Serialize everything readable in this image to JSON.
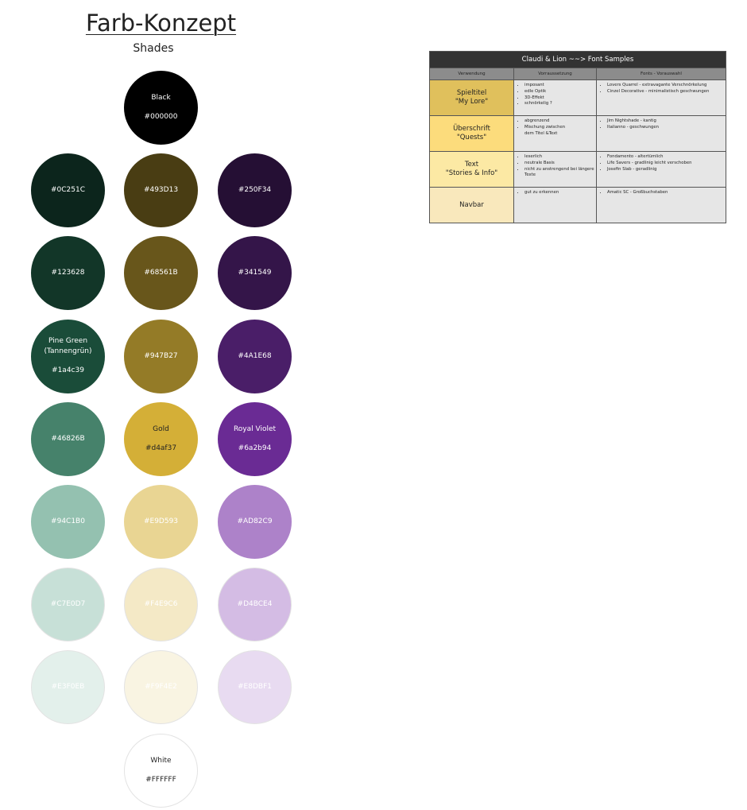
{
  "title": "Farb-Konzept",
  "subtitle": "Shades",
  "swatches": [
    {
      "id": "black",
      "name": "Black",
      "label": "#000000",
      "color": "#000000",
      "text": "#ffffff",
      "col": 1,
      "row": 0
    },
    {
      "id": "0c251c",
      "name": "",
      "label": "#0C251C",
      "color": "#0C251C",
      "text": "#ffffff",
      "col": 0,
      "row": 1
    },
    {
      "id": "493d13",
      "name": "",
      "label": "#493D13",
      "color": "#493D13",
      "text": "#ffffff",
      "col": 1,
      "row": 1
    },
    {
      "id": "250f34",
      "name": "",
      "label": "#250F34",
      "color": "#250F34",
      "text": "#ffffff",
      "col": 2,
      "row": 1
    },
    {
      "id": "123628",
      "name": "",
      "label": "#123628",
      "color": "#123628",
      "text": "#ffffff",
      "col": 0,
      "row": 2
    },
    {
      "id": "68561b",
      "name": "",
      "label": "#68561B",
      "color": "#68561B",
      "text": "#ffffff",
      "col": 1,
      "row": 2
    },
    {
      "id": "341549",
      "name": "",
      "label": "#341549",
      "color": "#341549",
      "text": "#ffffff",
      "col": 2,
      "row": 2
    },
    {
      "id": "1a4c39",
      "name": "Pine Green\n(Tannengrün)",
      "label": "#1a4c39",
      "color": "#1a4c39",
      "text": "#ffffff",
      "col": 0,
      "row": 3
    },
    {
      "id": "947b27",
      "name": "",
      "label": "#947B27",
      "color": "#947B27",
      "text": "#ffffff",
      "col": 1,
      "row": 3
    },
    {
      "id": "4a1e68",
      "name": "",
      "label": "#4A1E68",
      "color": "#4A1E68",
      "text": "#ffffff",
      "col": 2,
      "row": 3
    },
    {
      "id": "46826b",
      "name": "",
      "label": "#46826B",
      "color": "#46826B",
      "text": "#ffffff",
      "col": 0,
      "row": 4
    },
    {
      "id": "d4af37",
      "name": "Gold",
      "label": "#d4af37",
      "color": "#d4af37",
      "text": "#222222",
      "col": 1,
      "row": 4
    },
    {
      "id": "6a2b94",
      "name": "Royal Violet",
      "label": "#6a2b94",
      "color": "#6a2b94",
      "text": "#ffffff",
      "col": 2,
      "row": 4
    },
    {
      "id": "94c1b0",
      "name": "",
      "label": "#94C1B0",
      "color": "#94C1B0",
      "text": "#ffffff",
      "col": 0,
      "row": 5
    },
    {
      "id": "e9d593",
      "name": "",
      "label": "#E9D593",
      "color": "#E9D593",
      "text": "#ffffff",
      "col": 1,
      "row": 5
    },
    {
      "id": "ad82c9",
      "name": "",
      "label": "#AD82C9",
      "color": "#AD82C9",
      "text": "#ffffff",
      "col": 2,
      "row": 5
    },
    {
      "id": "c7e0d7",
      "name": "",
      "label": "#C7E0D7",
      "color": "#C7E0D7",
      "text": "#ffffff",
      "col": 0,
      "row": 6
    },
    {
      "id": "f4e9c6",
      "name": "",
      "label": "#F4E9C6",
      "color": "#F4E9C6",
      "text": "#ffffff",
      "col": 1,
      "row": 6
    },
    {
      "id": "d4bce4",
      "name": "",
      "label": "#D4BCE4",
      "color": "#D4BCE4",
      "text": "#ffffff",
      "col": 2,
      "row": 6
    },
    {
      "id": "e3f0eb",
      "name": "",
      "label": "#E3F0EB",
      "color": "#E3F0EB",
      "text": "#ffffff",
      "col": 0,
      "row": 7
    },
    {
      "id": "f9f4e2",
      "name": "",
      "label": "#F9F4E2",
      "color": "#F9F4E2",
      "text": "#ffffff",
      "col": 1,
      "row": 7
    },
    {
      "id": "e8dbf1",
      "name": "",
      "label": "#E8DBF1",
      "color": "#E8DBF1",
      "text": "#ffffff",
      "col": 2,
      "row": 7
    },
    {
      "id": "white",
      "name": "White",
      "label": "#FFFFFF",
      "color": "#FFFFFF",
      "text": "#222222",
      "col": 1,
      "row": 8
    }
  ],
  "font_table": {
    "title": "Claudi & Lion ~~> Font Samples",
    "headers": [
      "Verwendung",
      "Vorraussetzung",
      "Fonts - Vorauswahl"
    ],
    "rows": [
      {
        "use": "Spieltitel\n\"My Lore\"",
        "bg": "#e0c05c",
        "requirements": [
          "imposant",
          "edle Optik",
          "3D-Effekt",
          "schnörkelig ?"
        ],
        "fonts": [
          "Lovers Quarrel  -  extravagante Verschnörkelung",
          "Cinzel Decorative  -  minimalistisch geschwungen"
        ]
      },
      {
        "use": "Überschrift\n\"Quests\"",
        "bg": "#fcdc7c",
        "requirements": [
          "abgrenzend",
          "Mischung zwischen\ndem Titel &Text"
        ],
        "fonts": [
          "Jim Nightshade  -  kantig",
          "Italianno  -  geschwungen"
        ]
      },
      {
        "use": "Text\n\"Stories & Info\"",
        "bg": "#fce9a4",
        "requirements": [
          "leserlich",
          "neutrale Basis",
          "nicht zu anstrengend bei längere Texte"
        ],
        "fonts": [
          "Fondamento  -  altertümlich",
          "Life Savers  -  gradlinig leicht verschoben",
          "Josefin Slab  -  geradlinig"
        ]
      },
      {
        "use": "Navbar",
        "bg": "#f9e8bc",
        "requirements": [
          "gut zu erkennen"
        ],
        "fonts": [
          "Amatic SC  -  Großbuchstaben"
        ]
      }
    ]
  }
}
